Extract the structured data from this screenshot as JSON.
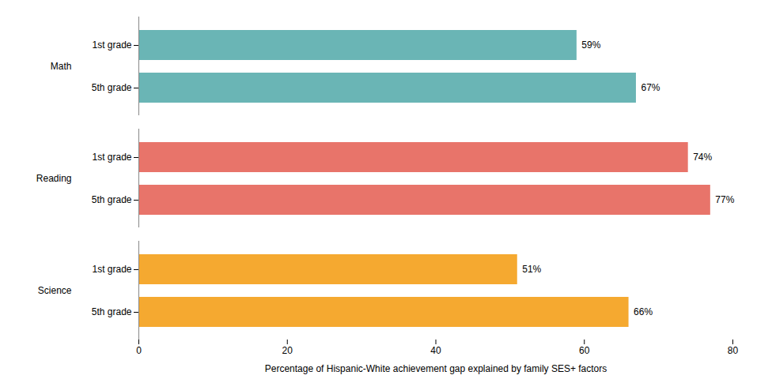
{
  "chart_data": {
    "type": "bar",
    "orientation": "horizontal",
    "categories": [
      "1st grade",
      "5th grade",
      "1st grade",
      "5th grade",
      "1st grade",
      "5th grade"
    ],
    "groups": [
      "Math",
      "Math",
      "Reading",
      "Reading",
      "Science",
      "Science"
    ],
    "values": [
      59,
      67,
      74,
      77,
      51,
      66
    ],
    "value_labels": [
      "59%",
      "67%",
      "74%",
      "77%",
      "51%",
      "66%"
    ],
    "data_labels": true,
    "colors": [
      "#6ab5b5",
      "#6ab5b5",
      "#e8746a",
      "#e8746a",
      "#f5a930",
      "#f5a930"
    ],
    "xlabel": "Percentage of Hispanic-White achievement gap explained by family SES+ factors",
    "xlim": [
      0,
      80
    ],
    "xticks": [
      0,
      20,
      40,
      60,
      80
    ],
    "grid": false
  }
}
